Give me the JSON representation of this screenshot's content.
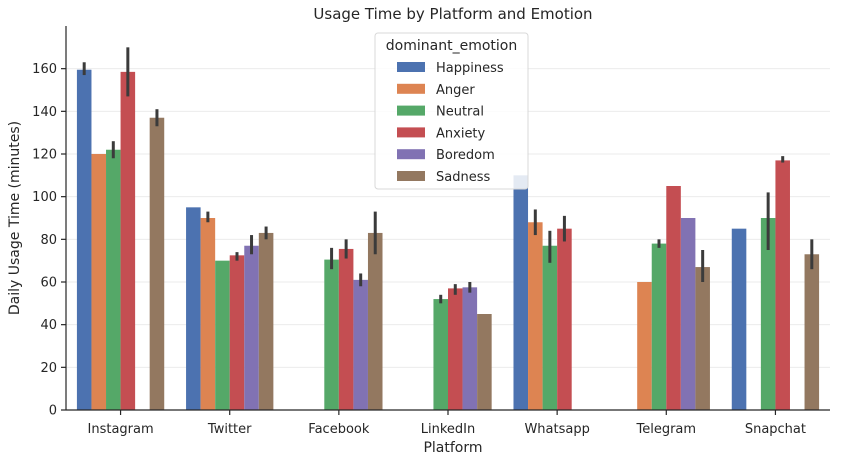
{
  "chart_data": {
    "type": "bar",
    "title": "Usage Time by Platform and Emotion",
    "xlabel": "Platform",
    "ylabel": "Daily Usage Time (minutes)",
    "ylim": [
      0,
      180
    ],
    "yticks": [
      0,
      20,
      40,
      60,
      80,
      100,
      120,
      140,
      160
    ],
    "grid": true,
    "legend": {
      "title": "dominant_emotion",
      "placement": "top-center"
    },
    "categories": [
      "Instagram",
      "Twitter",
      "Facebook",
      "LinkedIn",
      "Whatsapp",
      "Telegram",
      "Snapchat"
    ],
    "series": [
      {
        "name": "Happiness",
        "color": "#4c72b0",
        "values": [
          159.5,
          95,
          null,
          null,
          110,
          null,
          85
        ],
        "err": [
          [
            157,
            163
          ],
          null,
          null,
          null,
          null,
          null,
          null
        ]
      },
      {
        "name": "Anger",
        "color": "#dd8452",
        "values": [
          120,
          90,
          null,
          null,
          88,
          60,
          null
        ],
        "err": [
          null,
          [
            88,
            93
          ],
          null,
          null,
          [
            82,
            94
          ],
          null,
          null
        ]
      },
      {
        "name": "Neutral",
        "color": "#55a868",
        "values": [
          122,
          70,
          70.5,
          52,
          77,
          78,
          90
        ],
        "err": [
          [
            118,
            126
          ],
          null,
          [
            66,
            76
          ],
          [
            50,
            54
          ],
          [
            69,
            84
          ],
          [
            76,
            80
          ],
          [
            75,
            102
          ]
        ]
      },
      {
        "name": "Anxiety",
        "color": "#c44e52",
        "values": [
          158.5,
          72.5,
          75.5,
          57,
          85,
          105,
          117
        ],
        "err": [
          [
            147,
            170
          ],
          [
            70,
            74
          ],
          [
            71,
            80
          ],
          [
            54,
            59
          ],
          [
            79,
            91
          ],
          null,
          [
            116,
            119
          ]
        ]
      },
      {
        "name": "Boredom",
        "color": "#8172b3",
        "values": [
          null,
          77,
          61,
          57.5,
          null,
          90,
          null
        ],
        "err": [
          null,
          [
            73,
            82
          ],
          [
            58,
            64
          ],
          [
            55,
            60
          ],
          null,
          null,
          null
        ]
      },
      {
        "name": "Sadness",
        "color": "#937860",
        "values": [
          137,
          83,
          83,
          45,
          null,
          67,
          73
        ],
        "err": [
          [
            133,
            141
          ],
          [
            80,
            86
          ],
          [
            73,
            93
          ],
          null,
          null,
          [
            60,
            75
          ],
          [
            66,
            80
          ]
        ]
      }
    ]
  }
}
